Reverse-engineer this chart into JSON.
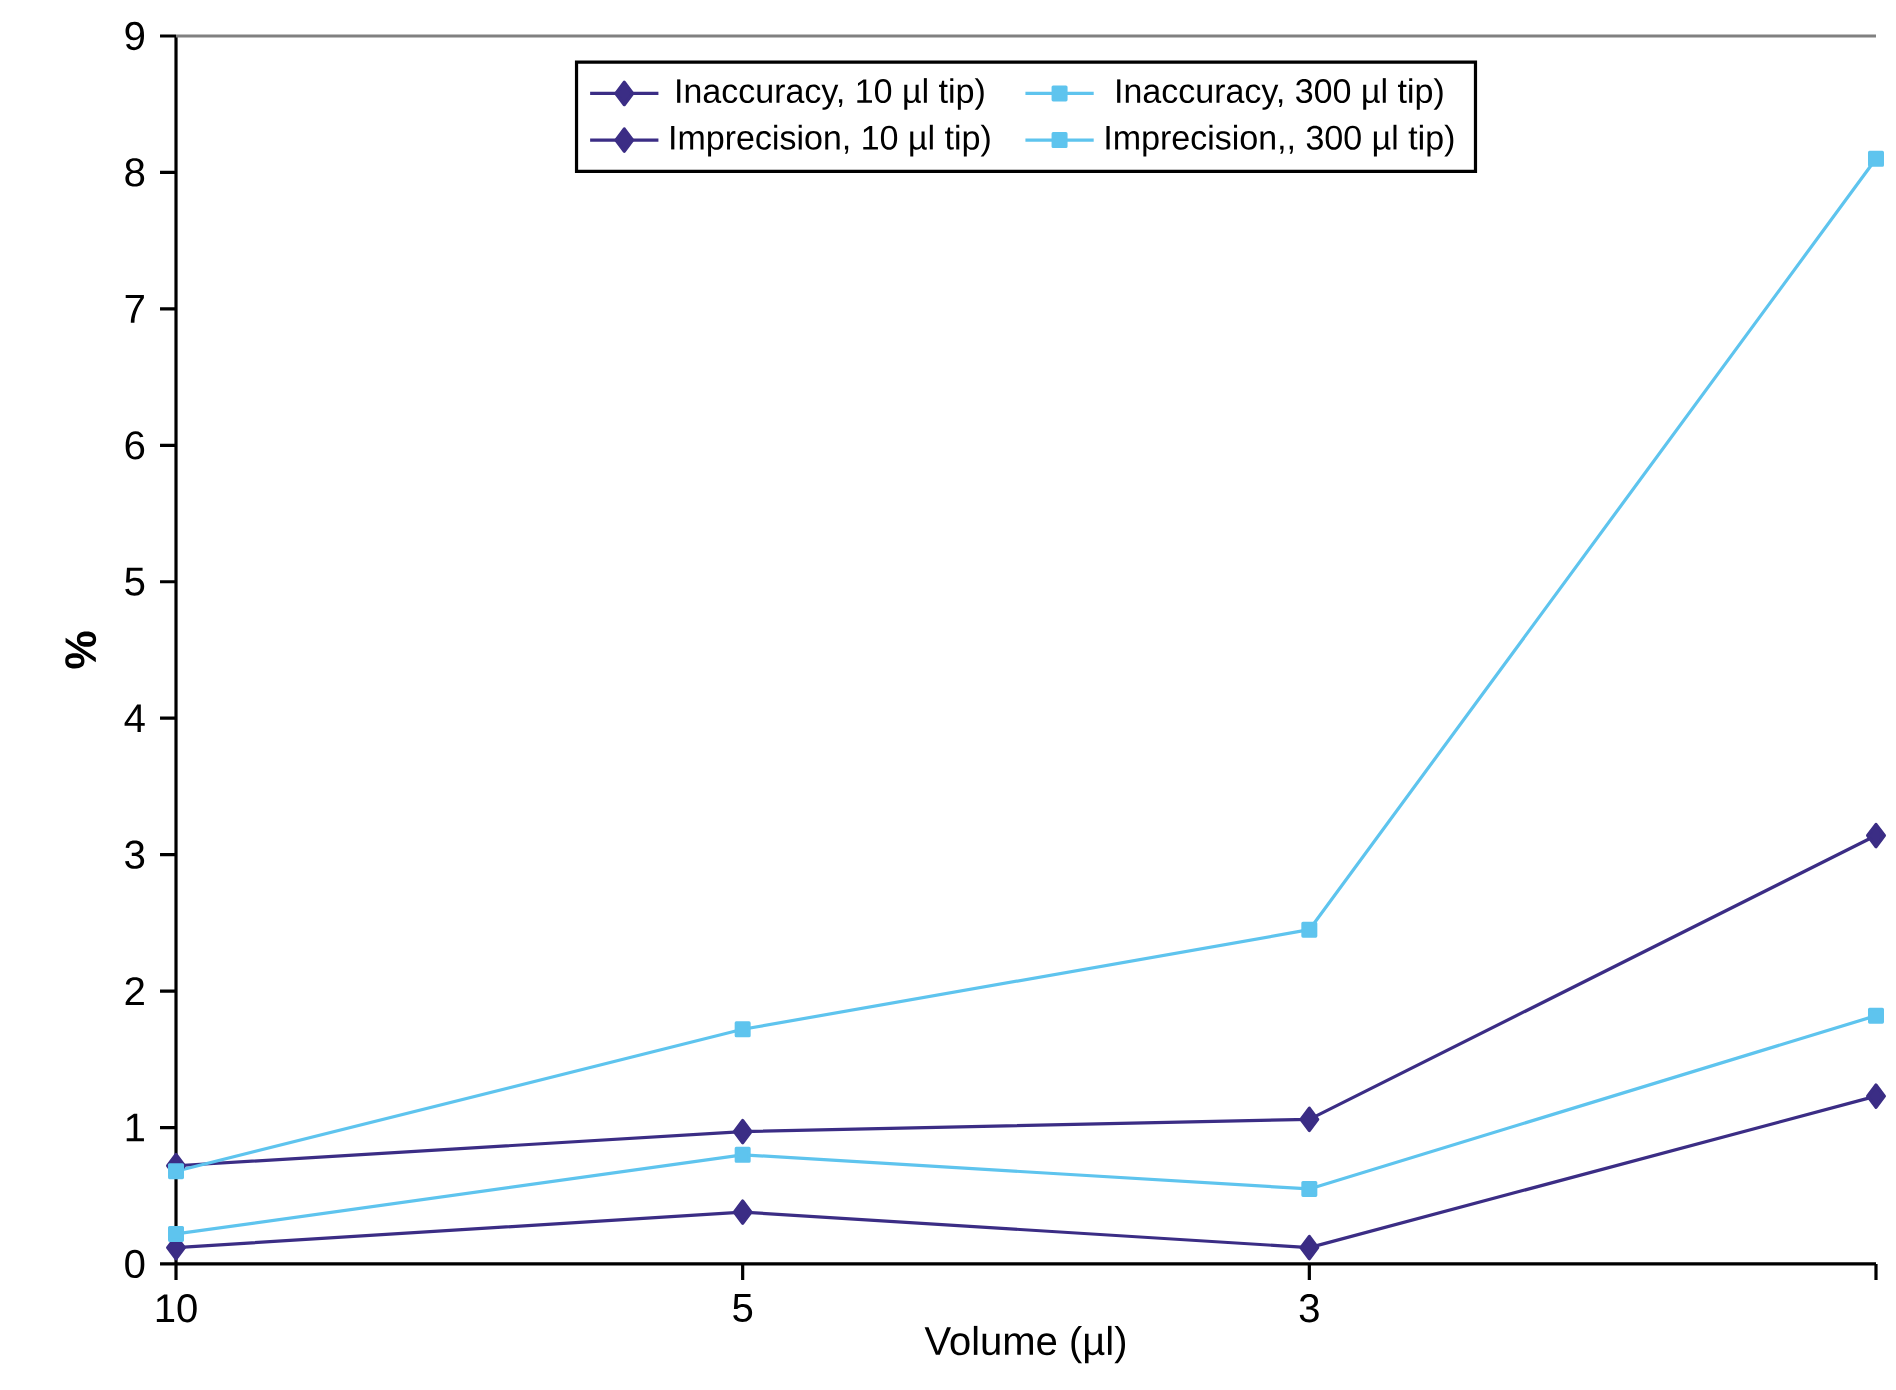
{
  "chart_data": {
    "type": "line",
    "xlabel": "Volume (µl)",
    "ylabel": "%",
    "categories": [
      "10",
      "5",
      "3",
      null
    ],
    "series": [
      {
        "name": "Inaccuracy, 10 µl tip)",
        "color": "#3b2d85",
        "marker": "diamond",
        "values": [
          0.12,
          0.38,
          0.12,
          1.23
        ]
      },
      {
        "name": "Inaccuracy, 300 µl tip)",
        "color": "#5ec4ee",
        "marker": "square",
        "values": [
          0.22,
          0.8,
          0.55,
          1.82
        ]
      },
      {
        "name": "Imprecision, 10 µl tip)",
        "color": "#3b2d85",
        "marker": "diamond",
        "values": [
          0.72,
          0.97,
          1.06,
          3.14
        ]
      },
      {
        "name": "Imprecision,, 300 µl tip)",
        "color": "#5ec4ee",
        "marker": "square",
        "values": [
          0.68,
          1.72,
          2.45,
          8.1
        ]
      }
    ],
    "ylim": [
      0,
      9
    ],
    "yticks": [
      0,
      1,
      2,
      3,
      4,
      5,
      6,
      7,
      8,
      9
    ],
    "grid": false,
    "legend": "top",
    "line_style": "solid"
  }
}
